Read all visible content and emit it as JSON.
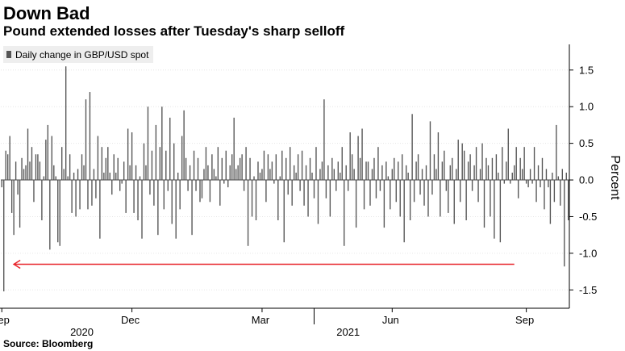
{
  "header": {
    "title": "Down Bad",
    "subtitle": "Pound extended losses after Tuesday's sharp selloff"
  },
  "source": "Source: Bloomberg",
  "colors": {
    "bar": "#555555",
    "arrow": "#e8252b",
    "grid": "#e6e6e6"
  },
  "chart_data": {
    "type": "bar",
    "legend": "Daily change in GBP/USD spot",
    "ylabel": "Percent",
    "ylim": [
      -1.75,
      1.85
    ],
    "yticks": [
      "1.5",
      "1.0",
      "0.5",
      "0.0",
      "-0.5",
      "-1.0",
      "-1.5"
    ],
    "ytick_values": [
      1.5,
      1.0,
      0.5,
      0.0,
      -0.5,
      -1.0,
      -1.5
    ],
    "xticks": [
      "Sep",
      "Dec",
      "Mar",
      "Jun",
      "Sep"
    ],
    "xtick_index": [
      0,
      65,
      130,
      195,
      262
    ],
    "years": [
      "2020",
      "2021"
    ],
    "year_index": [
      40,
      173
    ],
    "annotation": "arrow pointing left at about -1.15%",
    "arrow_level": -1.15,
    "values": [
      -0.1,
      -1.52,
      0.4,
      0.35,
      0.6,
      -0.45,
      -0.75,
      0.25,
      -0.2,
      -0.65,
      0.3,
      0.15,
      0.2,
      0.7,
      0.25,
      0.45,
      -0.3,
      0.35,
      0.35,
      0.25,
      -0.55,
      0.05,
      0.55,
      0.75,
      -0.95,
      0.6,
      0.2,
      0.05,
      -0.85,
      -0.9,
      0.45,
      0.15,
      1.55,
      0.05,
      0.35,
      -0.45,
      0.1,
      -0.5,
      0.15,
      -0.4,
      0.35,
      0.2,
      1.1,
      -0.4,
      1.2,
      -0.35,
      0.15,
      -0.25,
      0.6,
      -0.8,
      0.45,
      0.1,
      0.3,
      0.45,
      0.1,
      -0.2,
      0.35,
      0.1,
      0.3,
      -0.15,
      -0.05,
      0.25,
      -0.45,
      0.7,
      0.2,
      0.65,
      -0.45,
      0.2,
      -0.55,
      0.05,
      -0.8,
      0.5,
      0.2,
      1.0,
      -0.2,
      0.4,
      -0.35,
      0.75,
      -0.75,
      0.45,
      1.0,
      -0.4,
      0.4,
      -0.15,
      0.85,
      -0.6,
      0.5,
      -0.8,
      0.1,
      -0.4,
      0.6,
      0.95,
      0.3,
      -0.15,
      0.2,
      -0.75,
      0.4,
      -0.15,
      0.3,
      -0.3,
      -0.25,
      0.15,
      0.45,
      0.2,
      -0.3,
      0.35,
      0.15,
      0.05,
      0.45,
      -0.35,
      0.3,
      -0.05,
      0.4,
      -0.1,
      0.2,
      0.35,
      0.85,
      0.15,
      0.2,
      0.3,
      0.35,
      -0.15,
      0.45,
      -0.9,
      0.3,
      -0.5,
      0.05,
      -0.55,
      0.25,
      0.1,
      0.15,
      0.4,
      -0.3,
      0.35,
      0.15,
      0.25,
      -0.05,
      0.35,
      -0.55,
      0.05,
      0.4,
      -0.85,
      0.3,
      -0.2,
      0.45,
      -0.35,
      0.2,
      0.1,
      0.35,
      -0.15,
      0.4,
      -0.35,
      0.2,
      -0.5,
      0.3,
      0.1,
      -0.25,
      0.45,
      -0.6,
      0.15,
      0.25,
      1.1,
      -0.25,
      0.2,
      -0.5,
      0.3,
      0.15,
      -0.15,
      0.25,
      0.1,
      0.45,
      -0.9,
      0.2,
      -0.15,
      0.65,
      0.35,
      0.15,
      -0.65,
      0.6,
      0.3,
      0.7,
      -0.4,
      0.25,
      0.25,
      -0.35,
      0.15,
      0.3,
      -0.25,
      0.45,
      -0.15,
      0.2,
      -0.65,
      0.25,
      0.05,
      -0.4,
      0.15,
      0.3,
      -0.3,
      0.25,
      -0.5,
      0.35,
      -0.85,
      0.2,
      0.1,
      -0.55,
      0.9,
      -0.3,
      0.25,
      0.35,
      -0.2,
      0.15,
      -0.35,
      0.2,
      -0.5,
      0.8,
      -0.2,
      0.35,
      0.15,
      0.65,
      -0.5,
      0.25,
      0.4,
      -0.15,
      -0.45,
      0.2,
      0.3,
      -0.6,
      0.15,
      0.55,
      -0.3,
      0.5,
      0.4,
      -0.55,
      0.25,
      0.35,
      -0.15,
      0.2,
      0.45,
      -0.3,
      0.15,
      0.5,
      -0.65,
      0.3,
      0.2,
      -0.5,
      0.3,
      -0.8,
      0.35,
      0.1,
      -0.85,
      0.45,
      -0.05,
      0.25,
      0.7,
      -0.05,
      0.1,
      0.2,
      0.45,
      -0.25,
      0.3,
      0.15,
      0.45,
      -0.05,
      -0.1,
      0.15,
      -0.05,
      0.45,
      -0.3,
      0.2,
      -0.1,
      0.3,
      -0.4,
      0.15,
      -0.1,
      -0.6,
      0.1,
      -0.3,
      0.75,
      0.05,
      -0.35,
      0.15,
      -1.18,
      0.1,
      -0.55
    ]
  }
}
